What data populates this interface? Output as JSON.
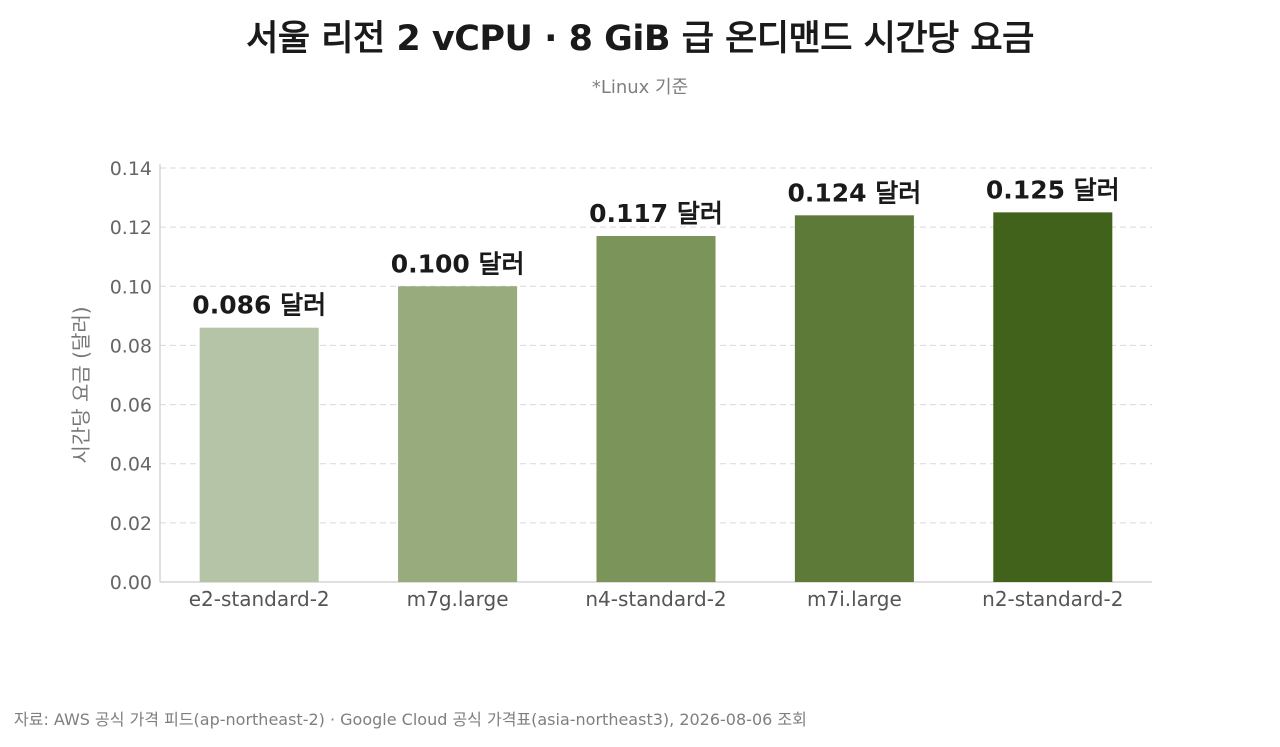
{
  "chart_data": {
    "type": "bar",
    "title": "서울 리전 2 vCPU · 8 GiB 급 온디맨드 시간당 요금",
    "subtitle": "*Linux 기준",
    "ylabel": "시간당 요금 (달러)",
    "xlabel": "",
    "categories": [
      "e2-standard-2",
      "m7g.large",
      "n4-standard-2",
      "m7i.large",
      "n2-standard-2"
    ],
    "values": [
      0.086,
      0.1,
      0.117,
      0.124,
      0.125
    ],
    "value_labels": [
      "0.086 달러",
      "0.100 달러",
      "0.117 달러",
      "0.124 달러",
      "0.125 달러"
    ],
    "colors": [
      "#b5c4a6",
      "#97ab7c",
      "#7a945a",
      "#5d7a38",
      "#41621a"
    ],
    "ylim": [
      0,
      0.14
    ],
    "yticks": [
      "0.00",
      "0.02",
      "0.04",
      "0.06",
      "0.08",
      "0.10",
      "0.12",
      "0.14"
    ],
    "grid": true,
    "legend": "none"
  },
  "source": "자료: AWS 공식 가격 피드(ap-northeast-2) · Google Cloud 공식 가격표(asia-northeast3), 2026-08-06 조회"
}
